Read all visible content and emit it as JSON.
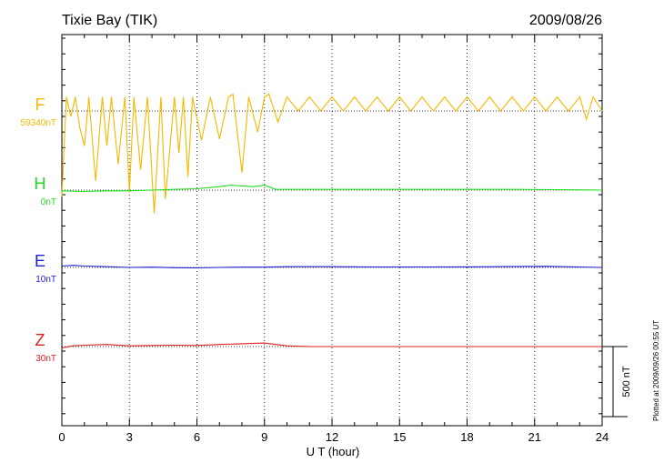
{
  "chart_data": {
    "type": "line",
    "title": "Tixie Bay (TIK)",
    "date": "2009/08/26",
    "xlabel": "U T (hour)",
    "xlim": [
      0,
      24
    ],
    "xticks": [
      0,
      3,
      6,
      9,
      12,
      15,
      18,
      21,
      24
    ],
    "x_minor_step": 1,
    "grid": "dotted-vertical-every-3h",
    "scale_bar_label": "500 nT",
    "plotted_note": "Plotted at 2009/09/26 00:55 UT",
    "series": [
      {
        "name": "F",
        "unit_label": "59340nT",
        "color": "#f5b800",
        "baseline_value": 59340,
        "values_nT": [
          [
            0.0,
            -610
          ],
          [
            0.2,
            100
          ],
          [
            0.4,
            -40
          ],
          [
            0.6,
            100
          ],
          [
            0.8,
            -120
          ],
          [
            1.0,
            -250
          ],
          [
            1.2,
            100
          ],
          [
            1.5,
            -500
          ],
          [
            1.8,
            100
          ],
          [
            2.0,
            -250
          ],
          [
            2.2,
            100
          ],
          [
            2.5,
            -380
          ],
          [
            2.8,
            100
          ],
          [
            3.0,
            -580
          ],
          [
            3.2,
            100
          ],
          [
            3.5,
            -420
          ],
          [
            3.8,
            100
          ],
          [
            4.1,
            -730
          ],
          [
            4.4,
            100
          ],
          [
            4.6,
            -630
          ],
          [
            5.0,
            100
          ],
          [
            5.2,
            -300
          ],
          [
            5.4,
            100
          ],
          [
            5.6,
            -470
          ],
          [
            5.8,
            100
          ],
          [
            6.2,
            -210
          ],
          [
            6.6,
            100
          ],
          [
            7.0,
            -200
          ],
          [
            7.4,
            100
          ],
          [
            7.6,
            120
          ],
          [
            8.0,
            -440
          ],
          [
            8.3,
            100
          ],
          [
            8.7,
            -150
          ],
          [
            9.0,
            100
          ],
          [
            9.2,
            120
          ],
          [
            9.6,
            -80
          ],
          [
            10.0,
            100
          ],
          [
            10.5,
            0
          ],
          [
            11.0,
            100
          ],
          [
            11.5,
            0
          ],
          [
            12.0,
            100
          ],
          [
            12.5,
            0
          ],
          [
            13.0,
            100
          ],
          [
            13.5,
            0
          ],
          [
            14.0,
            100
          ],
          [
            14.5,
            0
          ],
          [
            15.0,
            100
          ],
          [
            15.5,
            0
          ],
          [
            16.0,
            100
          ],
          [
            16.5,
            0
          ],
          [
            17.0,
            100
          ],
          [
            17.5,
            0
          ],
          [
            18.0,
            100
          ],
          [
            18.5,
            0
          ],
          [
            19.0,
            100
          ],
          [
            19.5,
            0
          ],
          [
            20.0,
            100
          ],
          [
            20.5,
            0
          ],
          [
            21.0,
            100
          ],
          [
            21.5,
            0
          ],
          [
            22.0,
            100
          ],
          [
            22.5,
            0
          ],
          [
            23.0,
            100
          ],
          [
            23.3,
            -60
          ],
          [
            23.6,
            100
          ],
          [
            24.0,
            0
          ]
        ]
      },
      {
        "name": "H",
        "unit_label": "0nT",
        "color": "#22dd22",
        "baseline_value": 0,
        "values_nT": [
          [
            0.0,
            -5
          ],
          [
            1.0,
            -10
          ],
          [
            2.0,
            -5
          ],
          [
            3.0,
            -5
          ],
          [
            4.0,
            0
          ],
          [
            5.0,
            5
          ],
          [
            6.0,
            10
          ],
          [
            7.0,
            25
          ],
          [
            7.5,
            35
          ],
          [
            8.0,
            30
          ],
          [
            8.5,
            25
          ],
          [
            9.0,
            35
          ],
          [
            9.5,
            5
          ],
          [
            10.0,
            5
          ],
          [
            12.0,
            5
          ],
          [
            14.0,
            5
          ],
          [
            16.0,
            5
          ],
          [
            18.0,
            5
          ],
          [
            20.0,
            5
          ],
          [
            22.0,
            3
          ],
          [
            24.0,
            0
          ]
        ]
      },
      {
        "name": "E",
        "unit_label": "10nT",
        "color": "#1e1ed2",
        "baseline_value": 10,
        "values_nT": [
          [
            0.0,
            10
          ],
          [
            0.5,
            15
          ],
          [
            1.0,
            10
          ],
          [
            2.0,
            5
          ],
          [
            3.0,
            0
          ],
          [
            4.0,
            2
          ],
          [
            5.0,
            -2
          ],
          [
            6.0,
            -3
          ],
          [
            7.0,
            0
          ],
          [
            8.0,
            2
          ],
          [
            9.0,
            2
          ],
          [
            10.0,
            5
          ],
          [
            12.0,
            5
          ],
          [
            14.0,
            3
          ],
          [
            16.0,
            3
          ],
          [
            18.0,
            4
          ],
          [
            20.0,
            6
          ],
          [
            21.5,
            8
          ],
          [
            22.0,
            6
          ],
          [
            24.0,
            0
          ]
        ]
      },
      {
        "name": "Z",
        "unit_label": "30nT",
        "color": "#dd2020",
        "baseline_value": 30,
        "values_nT": [
          [
            0.0,
            -10
          ],
          [
            0.5,
            5
          ],
          [
            1.0,
            10
          ],
          [
            2.0,
            15
          ],
          [
            3.0,
            5
          ],
          [
            4.0,
            8
          ],
          [
            5.0,
            10
          ],
          [
            6.0,
            8
          ],
          [
            7.0,
            15
          ],
          [
            8.0,
            20
          ],
          [
            9.0,
            25
          ],
          [
            9.5,
            15
          ],
          [
            10.0,
            5
          ],
          [
            11.0,
            0
          ],
          [
            12.0,
            0
          ],
          [
            14.0,
            0
          ],
          [
            16.0,
            0
          ],
          [
            18.0,
            0
          ],
          [
            20.0,
            0
          ],
          [
            22.0,
            0
          ],
          [
            24.0,
            0
          ]
        ]
      }
    ]
  }
}
